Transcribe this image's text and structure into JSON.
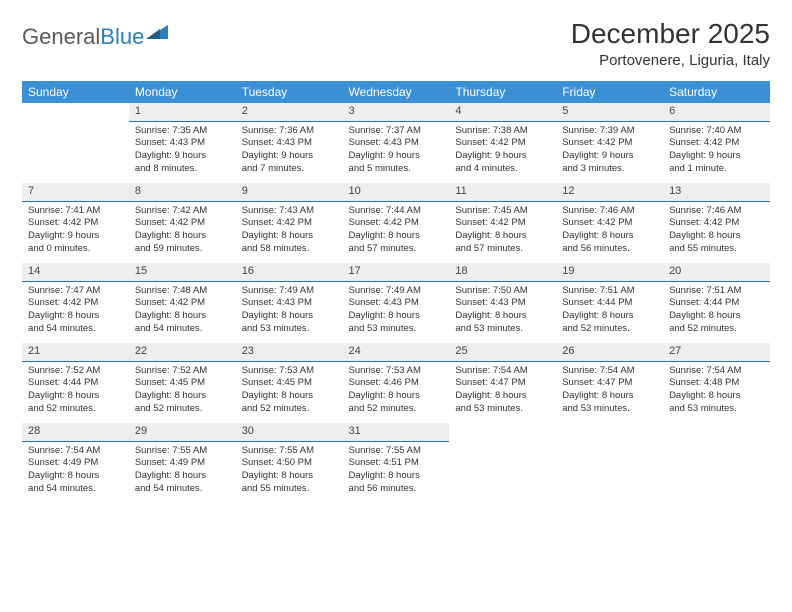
{
  "logo": {
    "textGray": "General",
    "textBlue": "Blue"
  },
  "title": "December 2025",
  "location": "Portovenere, Liguria, Italy",
  "dayHeaders": [
    "Sunday",
    "Monday",
    "Tuesday",
    "Wednesday",
    "Thursday",
    "Friday",
    "Saturday"
  ],
  "colors": {
    "headerBg": "#3b8fd4",
    "headerText": "#ffffff",
    "dayNumBg": "#eeeeee",
    "dayNumBorder": "#2a6fa8",
    "bodyText": "#333333",
    "logoGray": "#5a5a5a",
    "logoBlue": "#2a7fbf"
  },
  "weeks": [
    {
      "nums": [
        "",
        "1",
        "2",
        "3",
        "4",
        "5",
        "6"
      ],
      "cells": [
        [],
        [
          "Sunrise: 7:35 AM",
          "Sunset: 4:43 PM",
          "Daylight: 9 hours",
          "and 8 minutes."
        ],
        [
          "Sunrise: 7:36 AM",
          "Sunset: 4:43 PM",
          "Daylight: 9 hours",
          "and 7 minutes."
        ],
        [
          "Sunrise: 7:37 AM",
          "Sunset: 4:43 PM",
          "Daylight: 9 hours",
          "and 5 minutes."
        ],
        [
          "Sunrise: 7:38 AM",
          "Sunset: 4:42 PM",
          "Daylight: 9 hours",
          "and 4 minutes."
        ],
        [
          "Sunrise: 7:39 AM",
          "Sunset: 4:42 PM",
          "Daylight: 9 hours",
          "and 3 minutes."
        ],
        [
          "Sunrise: 7:40 AM",
          "Sunset: 4:42 PM",
          "Daylight: 9 hours",
          "and 1 minute."
        ]
      ]
    },
    {
      "nums": [
        "7",
        "8",
        "9",
        "10",
        "11",
        "12",
        "13"
      ],
      "cells": [
        [
          "Sunrise: 7:41 AM",
          "Sunset: 4:42 PM",
          "Daylight: 9 hours",
          "and 0 minutes."
        ],
        [
          "Sunrise: 7:42 AM",
          "Sunset: 4:42 PM",
          "Daylight: 8 hours",
          "and 59 minutes."
        ],
        [
          "Sunrise: 7:43 AM",
          "Sunset: 4:42 PM",
          "Daylight: 8 hours",
          "and 58 minutes."
        ],
        [
          "Sunrise: 7:44 AM",
          "Sunset: 4:42 PM",
          "Daylight: 8 hours",
          "and 57 minutes."
        ],
        [
          "Sunrise: 7:45 AM",
          "Sunset: 4:42 PM",
          "Daylight: 8 hours",
          "and 57 minutes."
        ],
        [
          "Sunrise: 7:46 AM",
          "Sunset: 4:42 PM",
          "Daylight: 8 hours",
          "and 56 minutes."
        ],
        [
          "Sunrise: 7:46 AM",
          "Sunset: 4:42 PM",
          "Daylight: 8 hours",
          "and 55 minutes."
        ]
      ]
    },
    {
      "nums": [
        "14",
        "15",
        "16",
        "17",
        "18",
        "19",
        "20"
      ],
      "cells": [
        [
          "Sunrise: 7:47 AM",
          "Sunset: 4:42 PM",
          "Daylight: 8 hours",
          "and 54 minutes."
        ],
        [
          "Sunrise: 7:48 AM",
          "Sunset: 4:42 PM",
          "Daylight: 8 hours",
          "and 54 minutes."
        ],
        [
          "Sunrise: 7:49 AM",
          "Sunset: 4:43 PM",
          "Daylight: 8 hours",
          "and 53 minutes."
        ],
        [
          "Sunrise: 7:49 AM",
          "Sunset: 4:43 PM",
          "Daylight: 8 hours",
          "and 53 minutes."
        ],
        [
          "Sunrise: 7:50 AM",
          "Sunset: 4:43 PM",
          "Daylight: 8 hours",
          "and 53 minutes."
        ],
        [
          "Sunrise: 7:51 AM",
          "Sunset: 4:44 PM",
          "Daylight: 8 hours",
          "and 52 minutes."
        ],
        [
          "Sunrise: 7:51 AM",
          "Sunset: 4:44 PM",
          "Daylight: 8 hours",
          "and 52 minutes."
        ]
      ]
    },
    {
      "nums": [
        "21",
        "22",
        "23",
        "24",
        "25",
        "26",
        "27"
      ],
      "cells": [
        [
          "Sunrise: 7:52 AM",
          "Sunset: 4:44 PM",
          "Daylight: 8 hours",
          "and 52 minutes."
        ],
        [
          "Sunrise: 7:52 AM",
          "Sunset: 4:45 PM",
          "Daylight: 8 hours",
          "and 52 minutes."
        ],
        [
          "Sunrise: 7:53 AM",
          "Sunset: 4:45 PM",
          "Daylight: 8 hours",
          "and 52 minutes."
        ],
        [
          "Sunrise: 7:53 AM",
          "Sunset: 4:46 PM",
          "Daylight: 8 hours",
          "and 52 minutes."
        ],
        [
          "Sunrise: 7:54 AM",
          "Sunset: 4:47 PM",
          "Daylight: 8 hours",
          "and 53 minutes."
        ],
        [
          "Sunrise: 7:54 AM",
          "Sunset: 4:47 PM",
          "Daylight: 8 hours",
          "and 53 minutes."
        ],
        [
          "Sunrise: 7:54 AM",
          "Sunset: 4:48 PM",
          "Daylight: 8 hours",
          "and 53 minutes."
        ]
      ]
    },
    {
      "nums": [
        "28",
        "29",
        "30",
        "31",
        "",
        "",
        ""
      ],
      "cells": [
        [
          "Sunrise: 7:54 AM",
          "Sunset: 4:49 PM",
          "Daylight: 8 hours",
          "and 54 minutes."
        ],
        [
          "Sunrise: 7:55 AM",
          "Sunset: 4:49 PM",
          "Daylight: 8 hours",
          "and 54 minutes."
        ],
        [
          "Sunrise: 7:55 AM",
          "Sunset: 4:50 PM",
          "Daylight: 8 hours",
          "and 55 minutes."
        ],
        [
          "Sunrise: 7:55 AM",
          "Sunset: 4:51 PM",
          "Daylight: 8 hours",
          "and 56 minutes."
        ],
        [],
        [],
        []
      ]
    }
  ]
}
